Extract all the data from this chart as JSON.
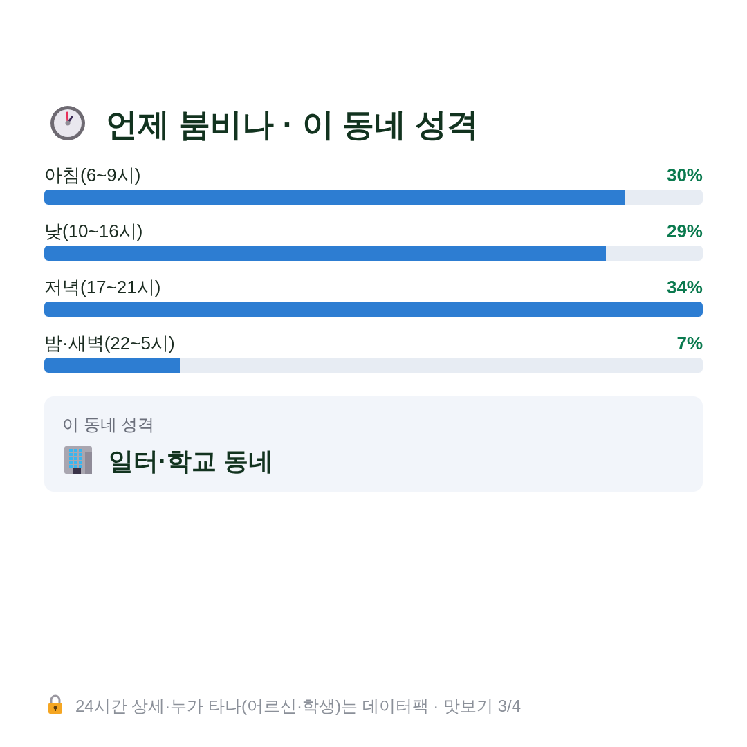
{
  "chart_data": [
    {
      "type": "bar",
      "orientation": "horizontal",
      "title": "언제 붐비나 · 이 동네 성격",
      "categories": [
        "아침(6~9시)",
        "낮(10~16시)",
        "저녁(17~21시)",
        "밤·새벽(22~5시)"
      ],
      "values": [
        30,
        29,
        34,
        7
      ],
      "value_labels": [
        "30%",
        "29%",
        "34%",
        "7%"
      ],
      "color": "#2d7dd2"
    },
    {
      "type": "other",
      "title": "이 동네 성격",
      "annotations": [
        "일터·학교 동네",
        "24시간 상세·누가 타나(어르신·학생)는 데이터팩 · 맛보기 3/4"
      ]
    }
  ]
}
